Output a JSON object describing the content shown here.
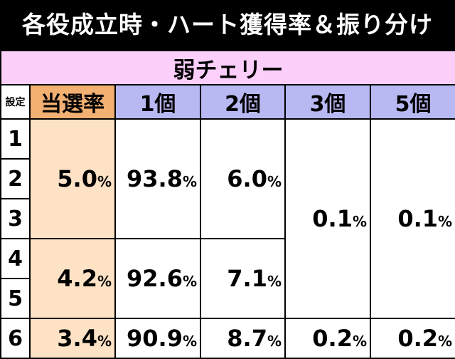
{
  "title": "各役成立時・ハート獲得率＆振り分け",
  "role_name": "弱チェリー",
  "headers": {
    "setting": "設定",
    "rate": "当選率",
    "c1": "1個",
    "c2": "2個",
    "c3": "3個",
    "c5": "5個"
  },
  "settings": [
    "1",
    "2",
    "3",
    "4",
    "5",
    "6"
  ],
  "groups": [
    {
      "rate": "5.0",
      "c1": "93.8",
      "c2": "6.0"
    },
    {
      "rate": "4.2",
      "c1": "92.6",
      "c2": "7.1"
    },
    {
      "rate": "3.4",
      "c1": "90.9",
      "c2": "8.7"
    }
  ],
  "c3_1to5": "0.1",
  "c5_1to5": "0.1",
  "c3_6": "0.2",
  "c5_6": "0.2",
  "pct": "%"
}
